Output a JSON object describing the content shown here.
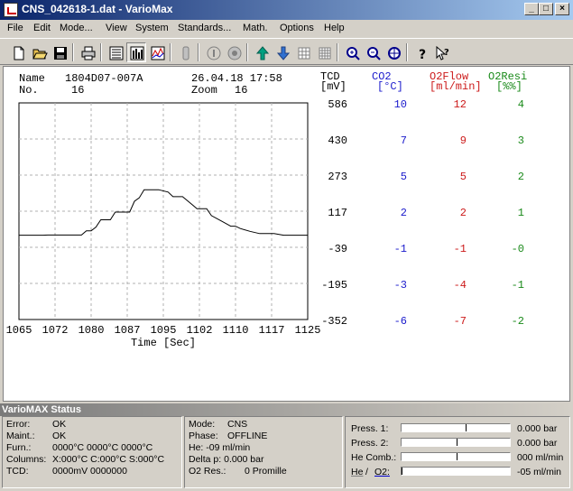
{
  "window": {
    "title": "CNS_042618-1.dat - VarioMax"
  },
  "menu": [
    "File",
    "Edit",
    "Mode...",
    "View",
    "System",
    "Standards...",
    "Math.",
    "Options",
    "Help"
  ],
  "info": {
    "name_label": "Name",
    "name_value": "1804D07-007A",
    "no_label": "No.",
    "no_value": "16",
    "datetime": "26.04.18 17:58",
    "zoom_label": "Zoom",
    "zoom_value": "16"
  },
  "columns": [
    {
      "title": "TCD",
      "unit": "[mV]",
      "color": "#000000",
      "values": [
        "586",
        "430",
        "273",
        "117",
        "-39",
        "-195",
        "-352"
      ]
    },
    {
      "title": "CO2",
      "unit": "[°C]",
      "color": "#1a1acc",
      "values": [
        "10",
        "7",
        "5",
        "2",
        "-1",
        "-3",
        "-6"
      ]
    },
    {
      "title": "O2Flow",
      "unit": "[ml/min]",
      "color": "#cc1a1a",
      "values": [
        "12",
        "9",
        "5",
        "2",
        "-1",
        "-4",
        "-7"
      ]
    },
    {
      "title": "O2Resi",
      "unit": "[%%]",
      "color": "#1a8a1a",
      "values": [
        "4",
        "3",
        "2",
        "1",
        "-0",
        "-1",
        "-2"
      ]
    }
  ],
  "chart_data": {
    "type": "line",
    "xlabel": "Time [Sec]",
    "x_ticks": [
      "1065",
      "1072",
      "1080",
      "1087",
      "1095",
      "1102",
      "1110",
      "1117",
      "1125"
    ],
    "xlim": [
      1065,
      1125
    ],
    "ylim": [
      -352,
      586
    ],
    "grid": true,
    "series": [
      {
        "values_xy": [
          [
            1065,
            13
          ],
          [
            1070,
            13
          ],
          [
            1071,
            14
          ],
          [
            1078,
            14
          ],
          [
            1079,
            32
          ],
          [
            1080,
            32
          ],
          [
            1081,
            48
          ],
          [
            1082,
            80
          ],
          [
            1084,
            80
          ],
          [
            1085,
            113
          ],
          [
            1088,
            113
          ],
          [
            1089,
            160
          ],
          [
            1090,
            175
          ],
          [
            1091,
            210
          ],
          [
            1094,
            210
          ],
          [
            1096,
            200
          ],
          [
            1097,
            180
          ],
          [
            1099,
            180
          ],
          [
            1101,
            145
          ],
          [
            1102,
            128
          ],
          [
            1104,
            128
          ],
          [
            1105,
            98
          ],
          [
            1107,
            75
          ],
          [
            1109,
            52
          ],
          [
            1110,
            52
          ],
          [
            1111,
            42
          ],
          [
            1113,
            30
          ],
          [
            1115,
            20
          ],
          [
            1118,
            20
          ],
          [
            1120,
            13
          ],
          [
            1125,
            13
          ]
        ]
      }
    ]
  },
  "status": {
    "title": "VarioMAX Status",
    "left": [
      {
        "label": "Error:",
        "value": "OK"
      },
      {
        "label": "Maint.:",
        "value": "OK"
      },
      {
        "label": "Furn.:",
        "value": "0000°C  0000°C  0000°C"
      },
      {
        "label": "Columns:",
        "value": "X:000°C C:000°C S:000°C"
      },
      {
        "label": "TCD:",
        "value": "0000mV  0000000"
      }
    ],
    "middle": [
      {
        "label": "Mode:",
        "value": "CNS"
      },
      {
        "label": "Phase:",
        "value": "OFFLINE"
      },
      {
        "label": "He: -09 ml/min",
        "value": ""
      },
      {
        "label": "Delta p: 0.000 bar",
        "value": ""
      },
      {
        "label": "O2 Res.:",
        "value": "0 Promille"
      }
    ],
    "right": [
      {
        "label": "Press. 1:",
        "value": "0.000  bar",
        "level": 0.6
      },
      {
        "label": "Press. 2:",
        "value": "0.000  bar",
        "level": 0.52
      },
      {
        "label": "He Comb.:",
        "value": "000 ml/min",
        "level": 0.52
      },
      {
        "label_a": "He",
        "label_sep": "/",
        "label_b": "O2:",
        "value": "-05 ml/min",
        "level": 0.0
      }
    ]
  }
}
